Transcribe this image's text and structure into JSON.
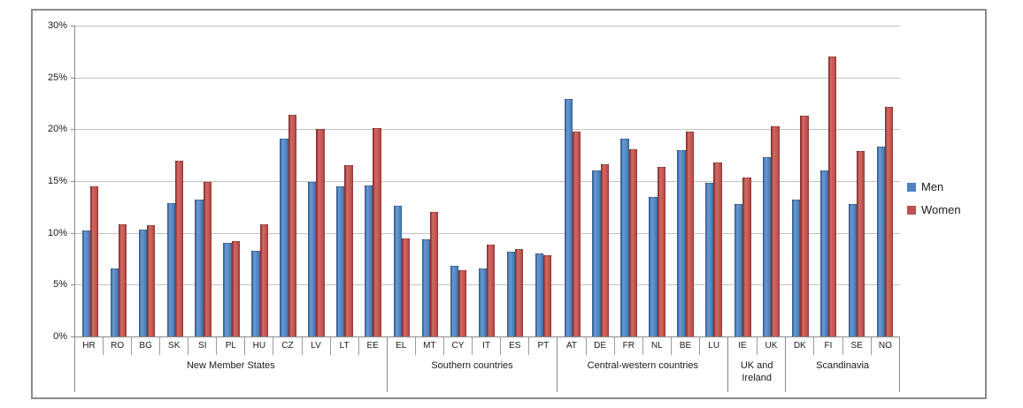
{
  "chart_data": {
    "type": "bar",
    "title": "",
    "xlabel": "",
    "ylabel": "",
    "ylim": [
      0,
      30
    ],
    "grid": true,
    "legend_position": "right",
    "yticks": [
      0,
      5,
      10,
      15,
      20,
      25,
      30
    ],
    "ytick_labels": [
      "0%",
      "5%",
      "10%",
      "15%",
      "20%",
      "25%",
      "30%"
    ],
    "series_names": [
      "Men",
      "Women"
    ],
    "series_colors": [
      "#4F81BD",
      "#C0504D"
    ],
    "groups": [
      {
        "label": "New Member States",
        "categories": [
          "HR",
          "RO",
          "BG",
          "SK",
          "SI",
          "PL",
          "HU",
          "CZ",
          "LV",
          "LT",
          "EE"
        ],
        "men": [
          10.2,
          6.6,
          10.3,
          12.9,
          13.2,
          9.0,
          8.3,
          19.1,
          14.9,
          14.5,
          14.6
        ],
        "women": [
          14.5,
          10.8,
          10.7,
          17.0,
          14.9,
          9.2,
          10.8,
          21.4,
          20.0,
          16.5,
          20.1
        ]
      },
      {
        "label": "Southern countries",
        "categories": [
          "EL",
          "MT",
          "CY",
          "IT",
          "ES",
          "PT"
        ],
        "men": [
          12.6,
          9.4,
          6.8,
          6.6,
          8.2,
          8.0
        ],
        "women": [
          9.5,
          12.0,
          6.4,
          8.9,
          8.4,
          7.8
        ]
      },
      {
        "label": "Central-western countries",
        "categories": [
          "AT",
          "DE",
          "FR",
          "NL",
          "BE",
          "LU"
        ],
        "men": [
          22.9,
          16.0,
          19.1,
          13.5,
          18.0,
          14.8
        ],
        "women": [
          19.8,
          16.6,
          18.1,
          16.4,
          19.8,
          16.8
        ]
      },
      {
        "label": "UK and Ireland",
        "categories": [
          "IE",
          "UK"
        ],
        "men": [
          12.8,
          17.3
        ],
        "women": [
          15.3,
          20.3
        ]
      },
      {
        "label": "Scandinavia",
        "categories": [
          "DK",
          "FI",
          "SE",
          "NO"
        ],
        "men": [
          13.2,
          16.0,
          12.8,
          18.3
        ],
        "women": [
          21.3,
          27.0,
          17.9,
          22.2
        ]
      }
    ],
    "colors": {
      "grid": "#C2C2C2",
      "axis": "#8A8A8A",
      "frame": "#8A8A8A",
      "text": "#1A1A1A",
      "background": "#FFFFFF"
    }
  }
}
